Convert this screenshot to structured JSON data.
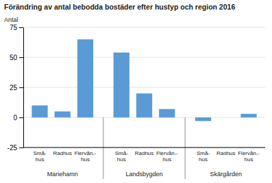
{
  "chart_data": {
    "type": "bar",
    "title": "Förändring av antal bebodda bostäder efter hustyp och region 2016",
    "ylabel": "Antal",
    "color": "#5b9bd5",
    "ylim": [
      -25,
      75
    ],
    "yticks": [
      -25,
      0,
      25,
      50,
      75
    ],
    "grid": true,
    "groups": [
      {
        "name": "Mariehamn",
        "categories": [
          "Små-\nhus",
          "Radhus",
          "Flervån.-\nhus"
        ],
        "values": [
          10,
          5,
          65
        ]
      },
      {
        "name": "Landsbygden",
        "categories": [
          "Små-\nhus",
          "Radhus",
          "Flervån.-\nhus"
        ],
        "values": [
          54,
          20,
          7
        ]
      },
      {
        "name": "Skärgården",
        "categories": [
          "Små-\nhus",
          "Radhus",
          "Flervån.-\nhus"
        ],
        "values": [
          -3,
          0,
          3
        ]
      }
    ]
  }
}
